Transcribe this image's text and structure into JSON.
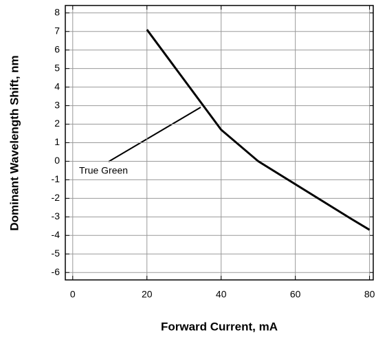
{
  "chart_data": {
    "type": "line",
    "xlabel": "Forward Current, mA",
    "ylabel": "Dominant Wavelength Shift, nm",
    "annotation": "True Green",
    "series": [
      {
        "name": "True Green",
        "color": "#000000",
        "x": [
          20,
          40,
          50,
          75,
          80
        ],
        "values": [
          7.1,
          1.7,
          0,
          -3.1,
          -3.7
        ]
      }
    ],
    "xlim": [
      -2,
      81
    ],
    "xticks": [
      0,
      20,
      40,
      60,
      80
    ],
    "ylim": [
      -6.4,
      8.4
    ],
    "yticks": [
      -6,
      -5,
      -4,
      -3,
      -2,
      -1,
      0,
      1,
      2,
      3,
      4,
      5,
      6,
      7,
      8
    ],
    "grid": true
  }
}
